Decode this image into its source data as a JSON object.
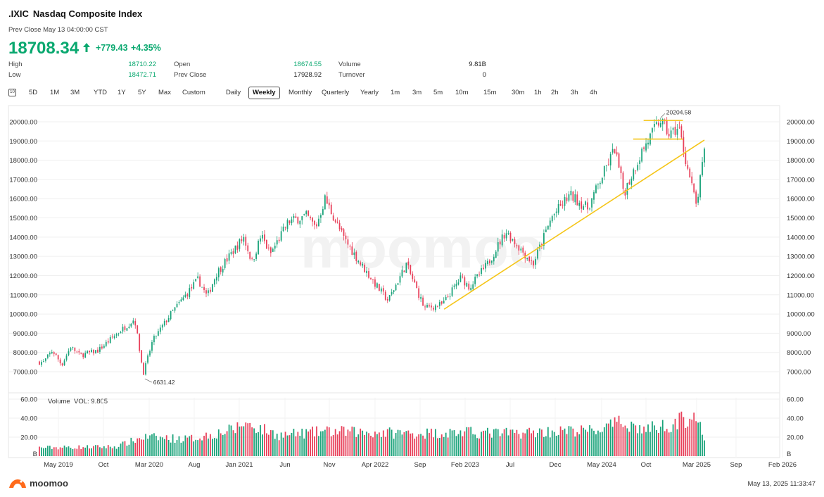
{
  "header": {
    "symbol": ".IXIC",
    "name": "Nasdaq Composite Index",
    "prev_close_time": "Prev Close May 13 04:00:00 CST",
    "price": "18708.34",
    "change": "+779.43",
    "change_pct": "+4.35%",
    "price_color": "#09a86f"
  },
  "stats": {
    "high_label": "High",
    "high": "18710.22",
    "low_label": "Low",
    "low": "18472.71",
    "open_label": "Open",
    "open": "18674.55",
    "prev_close_label": "Prev Close",
    "prev_close": "17928.92",
    "volume_label": "Volume",
    "volume": "9.81B",
    "turnover_label": "Turnover",
    "turnover": "0"
  },
  "timeframes": {
    "icon": "calendar-10-icon",
    "icon_text": "10",
    "ranges": [
      "5D",
      "1M",
      "3M",
      "YTD",
      "1Y",
      "5Y",
      "Max",
      "Custom"
    ],
    "intervals": [
      "Daily",
      "Weekly",
      "Monthly",
      "Quarterly",
      "Yearly",
      "1m",
      "3m",
      "5m",
      "10m",
      "15m",
      "30m",
      "1h",
      "2h",
      "3h",
      "4h"
    ],
    "active": "Weekly"
  },
  "footer": {
    "brand": "moomoo",
    "timestamp": "May 13, 2025 11:33:47"
  },
  "colors": {
    "up": "#1aa37a",
    "down": "#e8405a",
    "trend": "#f5c518"
  },
  "chart_data": {
    "type": "candlestick",
    "price_axis": {
      "ticks": [
        "20000.00",
        "19000.00",
        "18000.00",
        "17000.00",
        "16000.00",
        "15000.00",
        "14000.00",
        "13000.00",
        "12000.00",
        "11000.00",
        "10000.00",
        "9000.00",
        "8000.00",
        "7000.00"
      ],
      "range": [
        6500,
        20500
      ]
    },
    "volume_axis": {
      "label": "Volume",
      "vol_label": "VOL: 9.805",
      "ticks": [
        "60.00",
        "40.00",
        "20.00"
      ],
      "unit": "B",
      "range": [
        0,
        60
      ]
    },
    "x_ticks": [
      "May 2019",
      "Oct",
      "Mar 2020",
      "Aug",
      "Jan 2021",
      "Jun",
      "Nov",
      "Apr 2022",
      "Sep",
      "Feb 2023",
      "Jul",
      "Dec",
      "May 2024",
      "Oct",
      "Mar 2025",
      "Sep",
      "Feb 2026"
    ],
    "annotations": {
      "high": "20204.58",
      "low": "6631.42"
    },
    "close_path": [
      [
        "2019-04",
        7500
      ],
      [
        "2019-05",
        8100
      ],
      [
        "2019-06",
        7350
      ],
      [
        "2019-07",
        8300
      ],
      [
        "2019-08",
        7850
      ],
      [
        "2019-10",
        8100
      ],
      [
        "2019-12",
        8950
      ],
      [
        "2020-02",
        9750
      ],
      [
        "2020-03",
        6900
      ],
      [
        "2020-04",
        8600
      ],
      [
        "2020-06",
        10000
      ],
      [
        "2020-09",
        11800
      ],
      [
        "2020-10",
        10900
      ],
      [
        "2020-11",
        12100
      ],
      [
        "2021-02",
        14000
      ],
      [
        "2021-03",
        12700
      ],
      [
        "2021-04",
        14100
      ],
      [
        "2021-05",
        13100
      ],
      [
        "2021-07",
        14800
      ],
      [
        "2021-09",
        15100
      ],
      [
        "2021-10",
        14500
      ],
      [
        "2021-11",
        16000
      ],
      [
        "2022-01",
        14000
      ],
      [
        "2022-03",
        12600
      ],
      [
        "2022-05",
        11300
      ],
      [
        "2022-06",
        10700
      ],
      [
        "2022-08",
        12600
      ],
      [
        "2022-10",
        10300
      ],
      [
        "2022-12",
        10500
      ],
      [
        "2023-02",
        11900
      ],
      [
        "2023-03",
        11400
      ],
      [
        "2023-05",
        12600
      ],
      [
        "2023-07",
        14300
      ],
      [
        "2023-10",
        12600
      ],
      [
        "2023-12",
        15000
      ],
      [
        "2024-02",
        16200
      ],
      [
        "2024-04",
        15500
      ],
      [
        "2024-07",
        18600
      ],
      [
        "2024-08",
        16300
      ],
      [
        "2024-10",
        18500
      ],
      [
        "2024-12",
        20100
      ],
      [
        "2025-01",
        19300
      ],
      [
        "2025-02",
        19700
      ],
      [
        "2025-03",
        17700
      ],
      [
        "2025-04",
        15600
      ],
      [
        "2025-05",
        18700
      ]
    ],
    "volume_path": [
      [
        "2019-04",
        9
      ],
      [
        "2019-12",
        10
      ],
      [
        "2020-03",
        20
      ],
      [
        "2020-08",
        18
      ],
      [
        "2021-01",
        28
      ],
      [
        "2021-02",
        35
      ],
      [
        "2021-06",
        22
      ],
      [
        "2021-11",
        26
      ],
      [
        "2022-04",
        25
      ],
      [
        "2022-09",
        24
      ],
      [
        "2023-02",
        25
      ],
      [
        "2023-07",
        24
      ],
      [
        "2023-12",
        26
      ],
      [
        "2024-05",
        27
      ],
      [
        "2024-08",
        36
      ],
      [
        "2024-10",
        28
      ],
      [
        "2025-01",
        33
      ],
      [
        "2025-04",
        44
      ],
      [
        "2025-05",
        10
      ]
    ]
  }
}
